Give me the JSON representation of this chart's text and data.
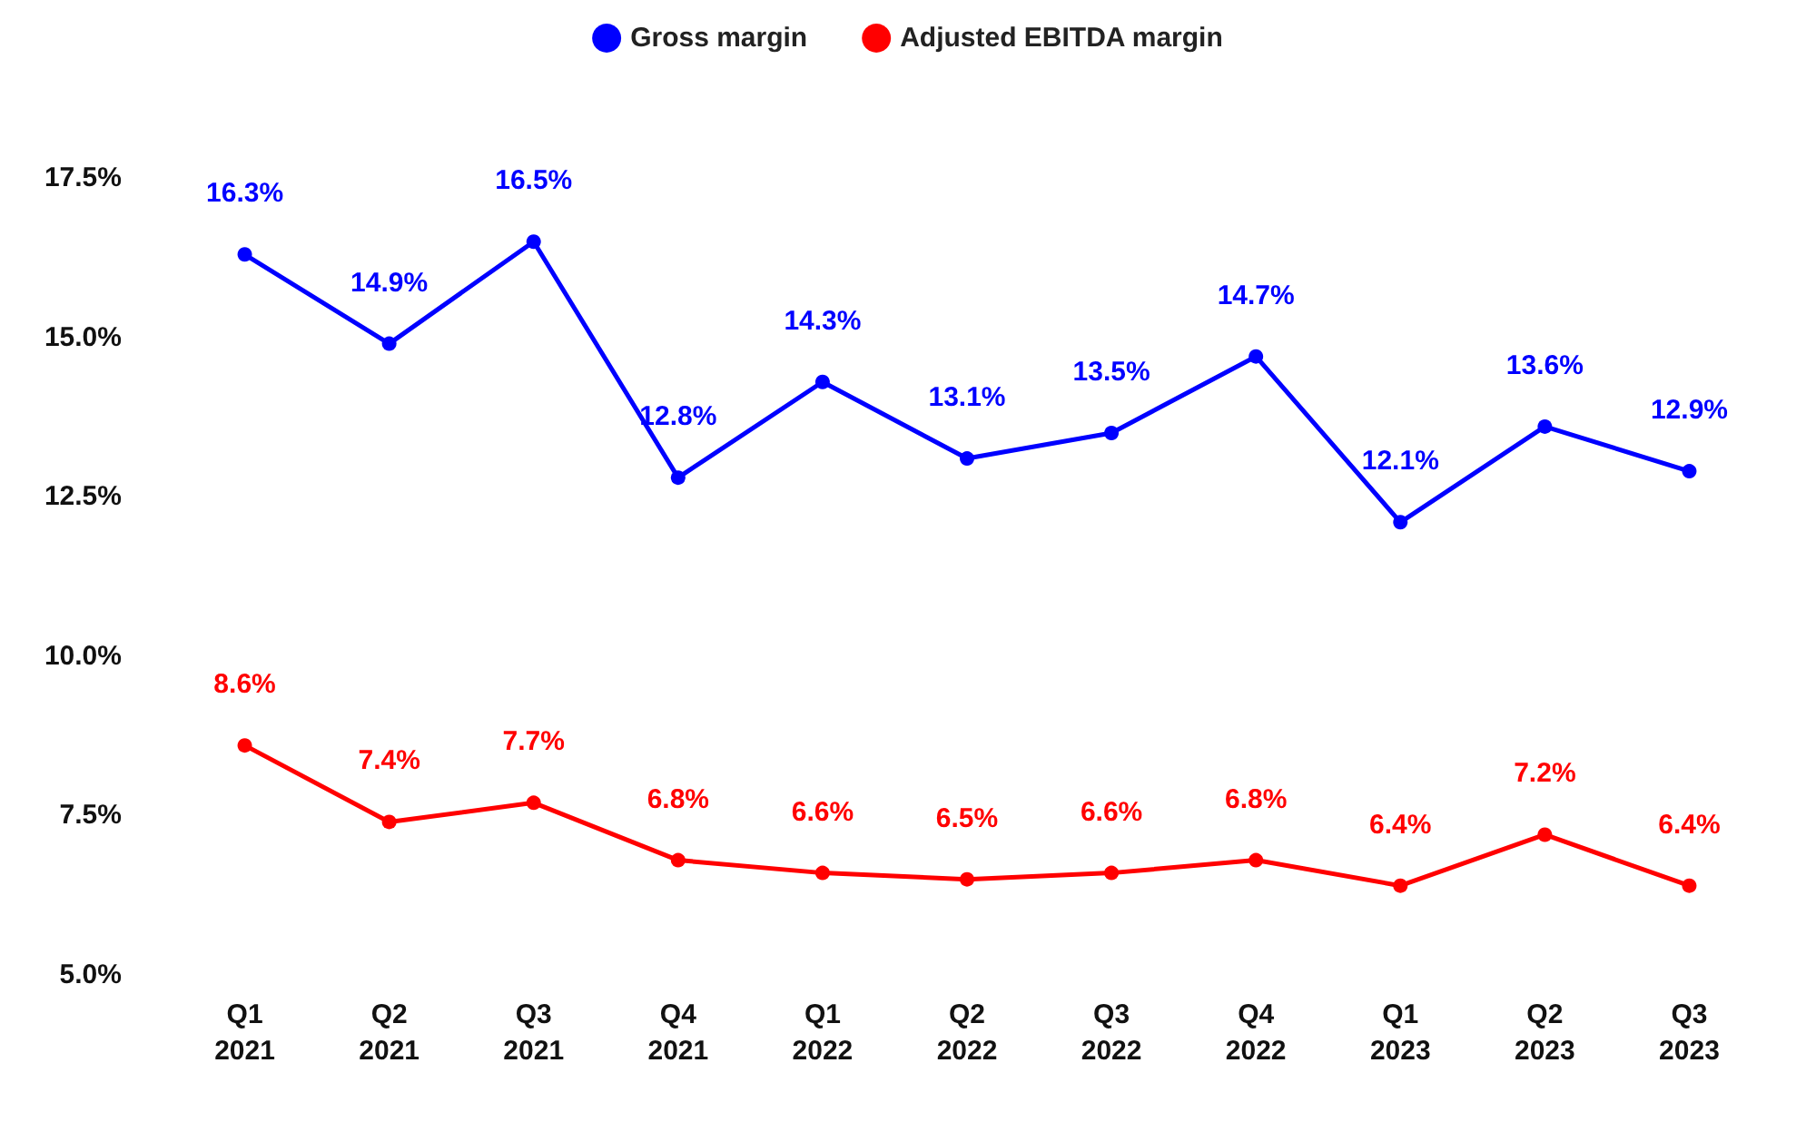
{
  "chart_data": {
    "type": "line",
    "categories": [
      "Q1\n2021",
      "Q2\n2021",
      "Q3\n2021",
      "Q4\n2021",
      "Q1\n2022",
      "Q2\n2022",
      "Q3\n2022",
      "Q4\n2022",
      "Q1\n2023",
      "Q2\n2023",
      "Q3\n2023"
    ],
    "series": [
      {
        "name": "Gross margin",
        "color": "#0000ff",
        "values": [
          16.3,
          14.9,
          16.5,
          12.8,
          14.3,
          13.1,
          13.5,
          14.7,
          12.1,
          13.6,
          12.9
        ],
        "value_labels": [
          "16.3%",
          "14.9%",
          "16.5%",
          "12.8%",
          "14.3%",
          "13.1%",
          "13.5%",
          "14.7%",
          "12.1%",
          "13.6%",
          "12.9%"
        ]
      },
      {
        "name": "Adjusted EBITDA margin",
        "color": "#ff0000",
        "values": [
          8.6,
          7.4,
          7.7,
          6.8,
          6.6,
          6.5,
          6.6,
          6.8,
          6.4,
          7.2,
          6.4
        ],
        "value_labels": [
          "8.6%",
          "7.4%",
          "7.7%",
          "6.8%",
          "6.6%",
          "6.5%",
          "6.6%",
          "6.8%",
          "6.4%",
          "7.2%",
          "6.4%"
        ]
      }
    ],
    "ylim": [
      5,
      17.5
    ],
    "yticks": [
      {
        "value": 5,
        "label": "5.0%"
      },
      {
        "value": 7.5,
        "label": "7.5%"
      },
      {
        "value": 10,
        "label": "10.0%"
      },
      {
        "value": 12.5,
        "label": "12.5%"
      },
      {
        "value": 15,
        "label": "15.0%"
      },
      {
        "value": 17.5,
        "label": "17.5%"
      }
    ],
    "legend": "top",
    "marker": "circle",
    "line_style": "solid",
    "grid": false
  }
}
